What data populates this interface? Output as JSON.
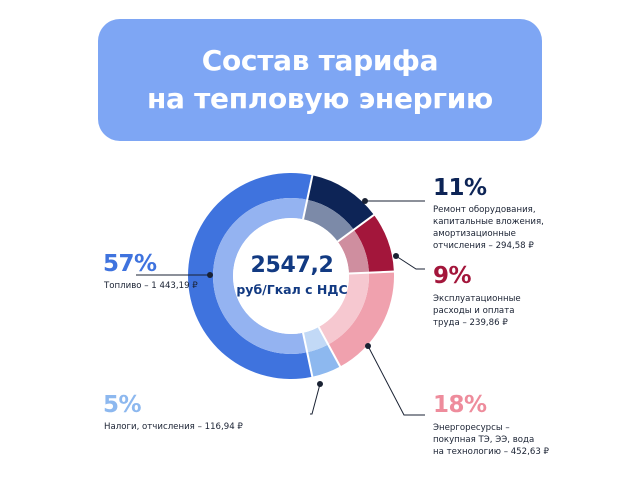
{
  "title": {
    "line1": "Состав тарифа",
    "line2": "на тепловую энергию"
  },
  "center": {
    "value": "2547,2",
    "unit": "руб/Гкал с НДС"
  },
  "colors": {
    "title_bg": "#7ea6f4",
    "fuel": "#3f73de",
    "repair": "#0d2456",
    "operation": "#a3163b",
    "energy": "#f0a1ae",
    "taxes": "#8db8ef"
  },
  "chart_data": {
    "type": "pie",
    "donut": true,
    "categories": [
      "Топливо – 1 443,19 ₽",
      "Ремонт оборудования, капитальные вложения, амортизационные отчисления – 294,58 ₽",
      "Эксплуатационные расходы и оплата труда – 239,86 ₽",
      "Энергоресурсы – покупная ТЭ, ЭЭ, вода на технологию – 452,63 ₽",
      "Налоги, отчисления – 116,94 ₽"
    ],
    "values": [
      1443.19,
      294.58,
      239.86,
      452.63,
      116.94
    ],
    "percent_labels": [
      "57%",
      "11%",
      "9%",
      "18%",
      "5%"
    ],
    "total": "2547,2"
  },
  "labels": {
    "fuel": {
      "pct": "57%",
      "text": "Топливо – 1 443,19 ₽"
    },
    "repair": {
      "pct": "11%",
      "lines": [
        "Ремонт оборудования,",
        "капитальные вложения,",
        "амортизационные",
        "отчисления – 294,58 ₽"
      ]
    },
    "operation": {
      "pct": "9%",
      "lines": [
        "Эксплуатационные",
        "расходы и оплата",
        "труда – 239,86 ₽"
      ]
    },
    "energy": {
      "pct": "18%",
      "lines": [
        "Энергоресурсы –",
        "покупная ТЭ, ЭЭ, вода",
        "на технологию – 452,63 ₽"
      ]
    },
    "taxes": {
      "pct": "5%",
      "text": "Налоги, отчисления – 116,94 ₽"
    }
  }
}
